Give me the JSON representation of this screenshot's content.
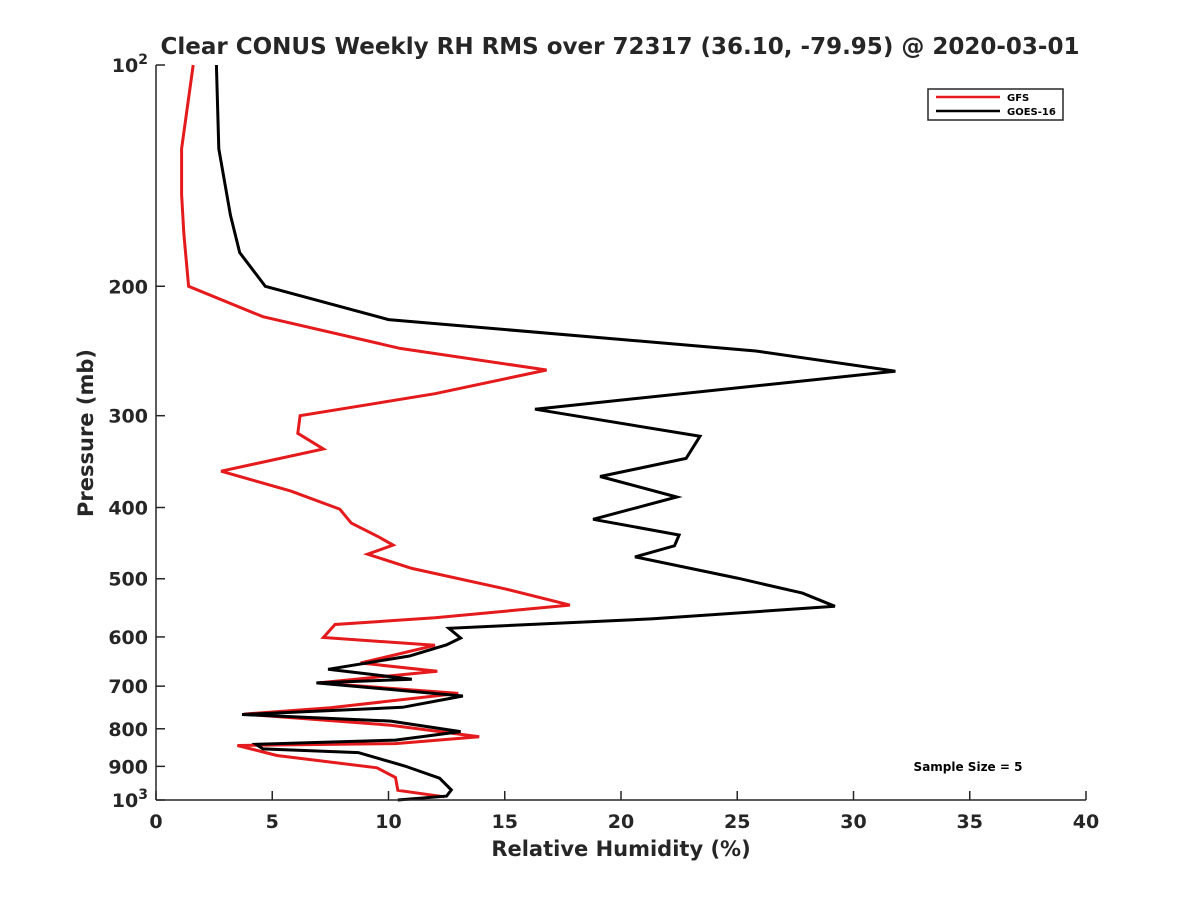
{
  "chart_data": {
    "type": "line",
    "title": "Clear CONUS Weekly RH RMS over 72317 (36.10, -79.95) @ 2020-03-01",
    "xlabel": "Relative Humidity (%)",
    "ylabel": "Pressure (mb)",
    "xlim": [
      0,
      40
    ],
    "ylim": [
      100,
      1000
    ],
    "yscale": "log",
    "y_reversed": true,
    "grid": false,
    "legend_position": "top-right",
    "x_ticks": [
      0,
      5,
      10,
      15,
      20,
      25,
      30,
      35,
      40
    ],
    "x_tick_labels": [
      "0",
      "5",
      "10",
      "15",
      "20",
      "25",
      "30",
      "35",
      "40"
    ],
    "y_ticks": [
      100,
      200,
      300,
      400,
      500,
      600,
      700,
      800,
      900,
      1000
    ],
    "y_tick_labels": [
      "10²",
      "200",
      "300",
      "400",
      "500",
      "600",
      "700",
      "800",
      "900",
      "10³"
    ],
    "series": [
      {
        "name": "GFS",
        "color": "#e41a1c",
        "x": [
          1.6,
          1.1,
          1.1,
          1.2,
          1.4,
          4.6,
          10.5,
          16.8,
          12,
          6.2,
          6.1,
          7.2,
          2.8,
          5.8,
          7.9,
          8.4,
          9.6,
          10.2,
          9.1,
          11,
          15,
          17.8,
          12,
          7.7,
          7.2,
          12,
          8.8,
          12.1,
          7,
          13,
          7.5,
          3.8,
          10.1,
          13.9,
          10.3,
          3.5,
          5.2,
          9.5,
          10.3,
          10.4,
          12.4
        ],
        "y": [
          100,
          130,
          150,
          170,
          200,
          220,
          243,
          260,
          280,
          300,
          317,
          333,
          357,
          380,
          402,
          420,
          439,
          450,
          463,
          484,
          516,
          543,
          565,
          577,
          601,
          616,
          651,
          668,
          693,
          716,
          749,
          764,
          791,
          820,
          838,
          843,
          870,
          904,
          932,
          970,
          990
        ]
      },
      {
        "name": "GOES-16",
        "color": "#000000",
        "x": [
          2.6,
          2.7,
          3.2,
          3.6,
          4.7,
          10,
          25.8,
          31.8,
          16.3,
          23.4,
          22.8,
          19.1,
          22.4,
          18.8,
          22.5,
          22.3,
          20.6,
          25,
          27.8,
          29.2,
          21.3,
          12.6,
          13.1,
          12.5,
          10.9,
          7.4,
          11,
          6.9,
          13.2,
          10.6,
          3.7,
          10.1,
          13.1,
          10.3,
          4.3,
          4.6,
          8.7,
          10.7,
          12.2,
          12.7,
          12.5,
          10.4
        ],
        "y": [
          100,
          130,
          160,
          180,
          200,
          222,
          245,
          261,
          294,
          320,
          343,
          363,
          387,
          415,
          436,
          451,
          467,
          499,
          523,
          545,
          567,
          584,
          602,
          615,
          637,
          664,
          685,
          693,
          722,
          748,
          765,
          781,
          807,
          829,
          840,
          852,
          862,
          899,
          934,
          969,
          988,
          1000
        ]
      }
    ],
    "annotations": [
      {
        "text": "Sample Size = 5",
        "x": 32.8,
        "y": 905
      }
    ]
  }
}
